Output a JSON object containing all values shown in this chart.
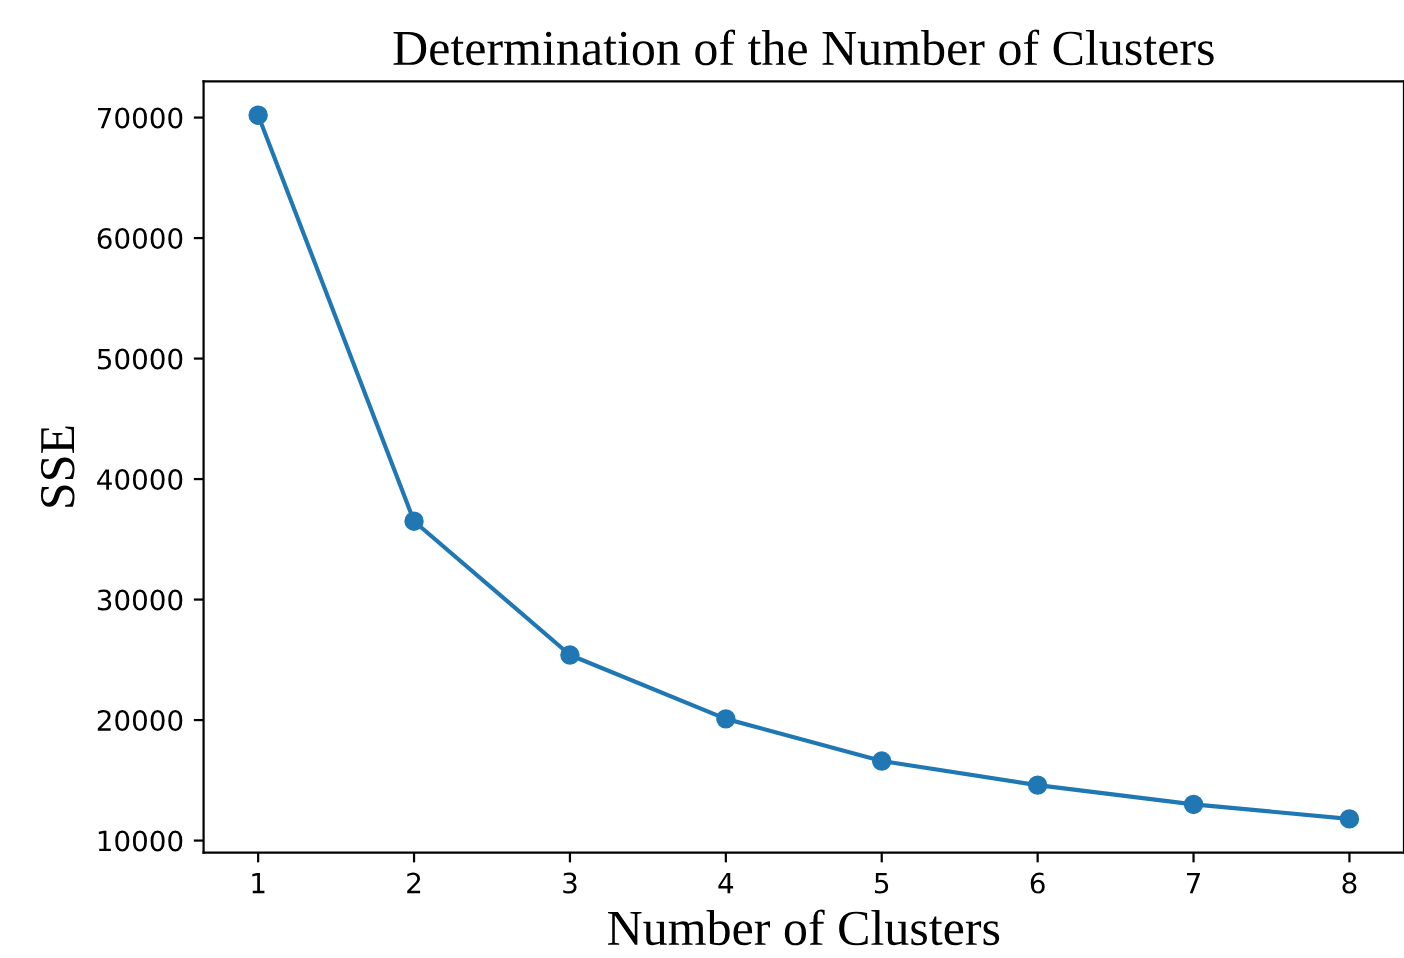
{
  "chart_data": {
    "type": "line",
    "title": "Determination of the Number of Clusters",
    "xlabel": "Number of Clusters",
    "ylabel": "SSE",
    "x": [
      1,
      2,
      3,
      4,
      5,
      6,
      7,
      8
    ],
    "series": [
      {
        "color": "#1f77b4",
        "values": [
          70200,
          36500,
          25400,
          20100,
          16600,
          14600,
          13000,
          11800
        ]
      }
    ],
    "xlim": [
      0.65,
      8.35
    ],
    "xticks": [
      1,
      2,
      3,
      4,
      5,
      6,
      7,
      8
    ],
    "ylim": [
      9000,
      73000
    ],
    "yticks": [
      10000,
      20000,
      30000,
      40000,
      50000,
      60000,
      70000
    ],
    "marker": "circle",
    "line_style": "solid",
    "grid": false,
    "legend": false
  }
}
